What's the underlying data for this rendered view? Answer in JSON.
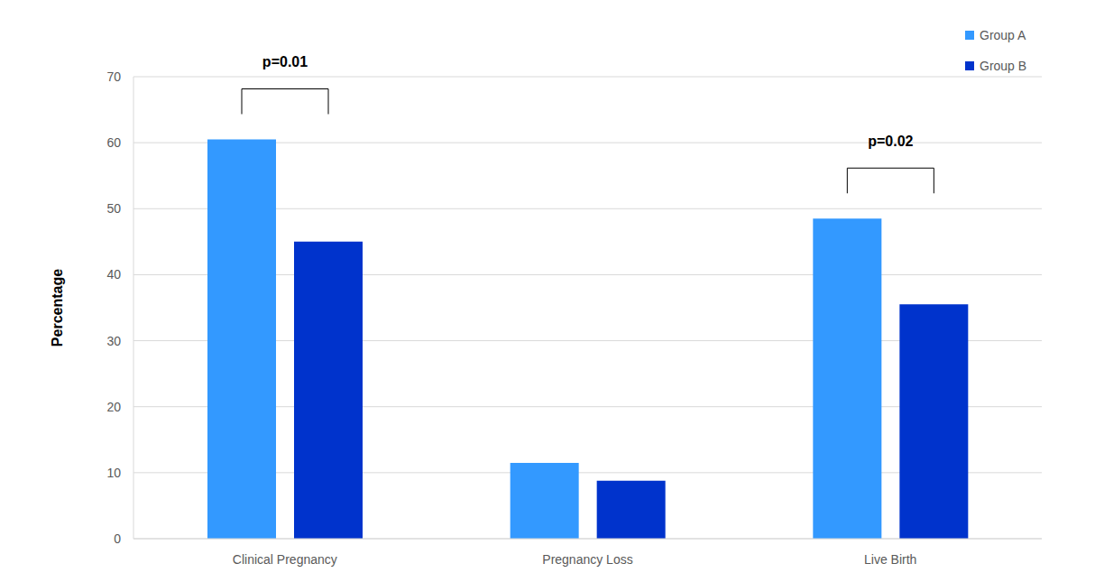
{
  "chart_data": {
    "type": "bar",
    "y_label": "Percentage",
    "categories": [
      "Clinical Pregnancy",
      "Pregnancy Loss",
      "Live Birth"
    ],
    "series": [
      {
        "name": "Group A",
        "color": "#3399ff",
        "values": [
          60.5,
          11.5,
          48.5
        ]
      },
      {
        "name": "Group B",
        "color": "#0033cc",
        "values": [
          45,
          8.8,
          35.5
        ]
      }
    ],
    "ylim": [
      0,
      70
    ],
    "yticks": [
      0,
      10,
      20,
      30,
      40,
      50,
      60,
      70
    ],
    "grid": true,
    "legend": "upper right",
    "annotations": [
      {
        "text": "p=0.01",
        "category": "Clinical Pregnancy",
        "series": [
          "Group A",
          "Group B"
        ]
      },
      {
        "text": "p=0.02",
        "category": "Live Birth",
        "series": [
          "Group A",
          "Group B"
        ]
      }
    ]
  }
}
